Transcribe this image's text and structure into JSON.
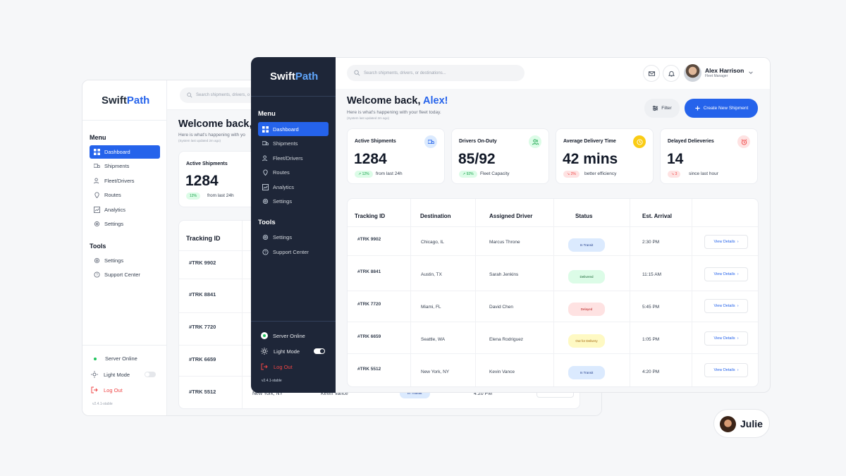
{
  "brand": {
    "name_part1": "Swift",
    "name_part2": "Path"
  },
  "search": {
    "placeholder": "Search shipments, drivers, or destinations...",
    "back_placeholder": "Search shipments, drivers, o"
  },
  "menu": {
    "heading": "Menu",
    "items": [
      {
        "label": "Dashboard",
        "icon": "grid-icon",
        "active": true
      },
      {
        "label": "Shipments",
        "icon": "truck-icon"
      },
      {
        "label": "Fleet/Drivers",
        "icon": "users-icon"
      },
      {
        "label": "Routes",
        "icon": "map-pin-icon"
      },
      {
        "label": "Analytics",
        "icon": "chart-icon"
      },
      {
        "label": "Settings",
        "icon": "gear-icon"
      }
    ]
  },
  "tools": {
    "heading": "Tools",
    "items": [
      {
        "label": "Settings",
        "icon": "gear-icon"
      },
      {
        "label": "Support Center",
        "icon": "help-icon"
      }
    ]
  },
  "footer": {
    "server": "Server Online",
    "light_mode": "Light Mode",
    "logout": "Log Out",
    "version": "v2.4.1-stable"
  },
  "user": {
    "name": "Alex Harrison",
    "role": "Fleet Manager"
  },
  "welcome": {
    "prefix": "Welcome back, ",
    "name": "Alex!",
    "back_title": "Welcome back,",
    "subtitle": "Here is what's happening with your fleet today.",
    "back_subtitle": "Here is what's happening with yo",
    "updated": "(System last updated 2m ago)"
  },
  "actions": {
    "filter": "Filter",
    "create": "Create New Shipment"
  },
  "kpis": [
    {
      "title": "Active Shipments",
      "value": "1284",
      "change": "12%",
      "trend": "up",
      "note": "from last 24h",
      "icon": "truck-icon"
    },
    {
      "title": "Drivers On-Duty",
      "value": "85/92",
      "change": "92%",
      "trend": "up",
      "note": "Fleet Capacity",
      "icon": "users-icon"
    },
    {
      "title": "Average Delivery Time",
      "value": "42 mins",
      "change": "2%",
      "trend": "down",
      "note": "better efficiency",
      "icon": "clock-icon"
    },
    {
      "title": "Delayed Delieveries",
      "value": "14",
      "change": "3",
      "trend": "down",
      "note": "since last hour",
      "icon": "alarm-icon"
    }
  ],
  "table": {
    "headers": [
      "Tracking ID",
      "Destination",
      "Assigned Driver",
      "Status",
      "Est. Arrival"
    ],
    "action_label": "View Details",
    "rows": [
      {
        "id": "#TRK 9902",
        "destination": "Chicago, IL",
        "driver": "Marcus Throne",
        "status": "In Transit",
        "arrival": "2:30 PM"
      },
      {
        "id": "#TRK 8841",
        "destination": "Austin, TX",
        "driver": "Sarah Jenkins",
        "status": "Delivered",
        "arrival": "11:15 AM"
      },
      {
        "id": "#TRK 7720",
        "destination": "Miami, FL",
        "driver": "David Chen",
        "status": "Delayed",
        "arrival": "5:45 PM"
      },
      {
        "id": "#TRK 6659",
        "destination": "Seattle, WA",
        "driver": "Elena Rodriguez",
        "status": "Out for Delivery",
        "arrival": "1:05 PM"
      },
      {
        "id": "#TRK 5512",
        "destination": "New York, NY",
        "driver": "Kevin Vance",
        "status": "In Transit",
        "arrival": "4:20 PM"
      }
    ]
  },
  "author": {
    "name": "Julie"
  },
  "colors": {
    "accent": "#2563eb",
    "sidebar_dark": "#1e2638",
    "success": "#16a34a",
    "danger": "#ef4444",
    "warning": "#eab308"
  }
}
